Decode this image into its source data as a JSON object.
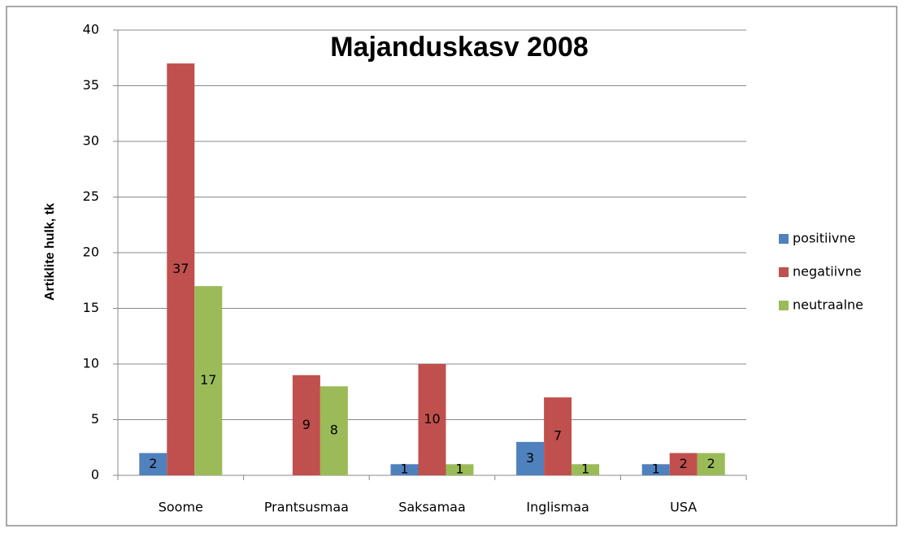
{
  "chart_data": {
    "type": "bar",
    "title": "Majanduskasv 2008",
    "y_label": "Artiklite hulk, tk",
    "categories": [
      "Soome",
      "Prantsusmaa",
      "Saksamaa",
      "Inglismaa",
      "USA"
    ],
    "series": [
      {
        "name": "positiivne",
        "color": "#4f81bd",
        "values": [
          2,
          null,
          1,
          3,
          1
        ]
      },
      {
        "name": "negatiivne",
        "color": "#c0504d",
        "values": [
          37,
          9,
          10,
          7,
          2
        ]
      },
      {
        "name": "neutraalne",
        "color": "#9bbb59",
        "values": [
          17,
          8,
          1,
          1,
          2
        ]
      }
    ],
    "ylim": [
      0,
      40
    ],
    "yticks": [
      0,
      5,
      10,
      15,
      20,
      25,
      30,
      35,
      40
    ],
    "grid": true,
    "legend": "right"
  }
}
